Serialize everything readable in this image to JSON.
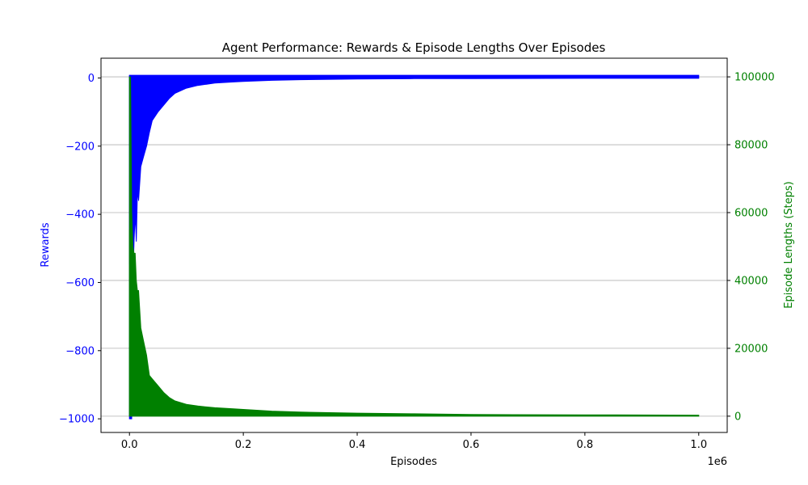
{
  "chart_data": {
    "type": "line",
    "title": "Agent Performance: Rewards & Episode Lengths Over Episodes",
    "xlabel": "Episodes",
    "x_offset_label": "1e6",
    "xlim": [
      -0.05,
      1.05
    ],
    "x_ticks": [
      0.0,
      0.2,
      0.4,
      0.6,
      0.8,
      1.0
    ],
    "x_tick_labels": [
      "0.0",
      "0.2",
      "0.4",
      "0.6",
      "0.8",
      "1.0"
    ],
    "grid": true,
    "left_axis": {
      "label": "Rewards",
      "color": "#0000ff",
      "ylim": [
        -1040,
        58
      ],
      "ticks": [
        0,
        -200,
        -400,
        -600,
        -800,
        -1000
      ],
      "tick_labels": [
        "0",
        "−200",
        "−400",
        "−600",
        "−800",
        "−1000"
      ]
    },
    "right_axis": {
      "label": "Episode Lengths (Steps)",
      "color": "#008000",
      "ylim": [
        -4800,
        105500
      ],
      "ticks": [
        0,
        20000,
        40000,
        60000,
        80000,
        100000
      ],
      "tick_labels": [
        "0",
        "20000",
        "40000",
        "60000",
        "80000",
        "100000"
      ]
    },
    "series": [
      {
        "name": "Rewards",
        "axis": "left",
        "color": "#0000ff",
        "x": [
          0.0,
          0.002,
          0.004,
          0.006,
          0.008,
          0.01,
          0.012,
          0.014,
          0.016,
          0.02,
          0.025,
          0.03,
          0.035,
          0.04,
          0.05,
          0.06,
          0.07,
          0.08,
          0.1,
          0.12,
          0.15,
          0.18,
          0.2,
          0.25,
          0.3,
          0.4,
          0.5,
          0.6,
          0.8,
          1.0
        ],
        "envelope_low": [
          -1000,
          -1000,
          -1000,
          -600,
          -480,
          -400,
          -480,
          -330,
          -360,
          -260,
          -230,
          -200,
          -160,
          -125,
          -100,
          -80,
          -60,
          -45,
          -30,
          -22,
          -15,
          -12,
          -10,
          -7,
          -5,
          -3,
          -2,
          -2,
          -1,
          -1
        ],
        "envelope_high": [
          8,
          8,
          8,
          8,
          8,
          8,
          8,
          8,
          8,
          8,
          8,
          8,
          8,
          8,
          8,
          8,
          8,
          8,
          8,
          8,
          8,
          8,
          8,
          8,
          8,
          8,
          8,
          8,
          8,
          8
        ]
      },
      {
        "name": "Episode Lengths (Steps)",
        "axis": "right",
        "color": "#008000",
        "x": [
          0.0,
          0.002,
          0.004,
          0.006,
          0.008,
          0.01,
          0.012,
          0.014,
          0.016,
          0.02,
          0.025,
          0.03,
          0.035,
          0.04,
          0.05,
          0.06,
          0.07,
          0.08,
          0.1,
          0.12,
          0.15,
          0.18,
          0.2,
          0.25,
          0.3,
          0.4,
          0.5,
          0.6,
          0.8,
          1.0
        ],
        "envelope_high": [
          100000,
          100000,
          60000,
          50000,
          48000,
          48000,
          40000,
          37000,
          37000,
          26000,
          22000,
          18000,
          12000,
          11000,
          9000,
          7000,
          5500,
          4500,
          3500,
          3000,
          2500,
          2200,
          2000,
          1500,
          1200,
          900,
          700,
          500,
          400,
          300
        ],
        "envelope_low": [
          0,
          0,
          0,
          0,
          0,
          0,
          0,
          0,
          0,
          0,
          0,
          0,
          0,
          0,
          0,
          0,
          0,
          0,
          0,
          0,
          0,
          0,
          0,
          0,
          0,
          0,
          0,
          0,
          0,
          0
        ]
      }
    ]
  }
}
